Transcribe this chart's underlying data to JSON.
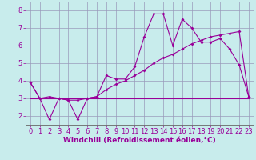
{
  "background_color": "#c8ecec",
  "plot_bg_color": "#c8ecec",
  "line_color": "#990099",
  "grid_color": "#9999bb",
  "spine_color": "#666666",
  "xlabel": "Windchill (Refroidissement éolien,°C)",
  "xlim": [
    -0.5,
    23.5
  ],
  "ylim": [
    1.5,
    8.5
  ],
  "yticks": [
    2,
    3,
    4,
    5,
    6,
    7,
    8
  ],
  "xticks": [
    0,
    1,
    2,
    3,
    4,
    5,
    6,
    7,
    8,
    9,
    10,
    11,
    12,
    13,
    14,
    15,
    16,
    17,
    18,
    19,
    20,
    21,
    22,
    23
  ],
  "series1_x": [
    0,
    1,
    2,
    3,
    4,
    5,
    6,
    7,
    8,
    9,
    10,
    11,
    12,
    13,
    14,
    15,
    16,
    17,
    18,
    19,
    20,
    21,
    22,
    23
  ],
  "series1_y": [
    3.9,
    3.0,
    1.8,
    3.0,
    2.9,
    1.8,
    3.0,
    3.1,
    4.3,
    4.1,
    4.1,
    4.8,
    6.5,
    7.8,
    7.8,
    6.0,
    7.5,
    7.0,
    6.2,
    6.2,
    6.4,
    5.8,
    4.9,
    3.1
  ],
  "series2_x": [
    0,
    1,
    2,
    3,
    4,
    5,
    6,
    7,
    8,
    9,
    10,
    11,
    12,
    13,
    14,
    15,
    16,
    17,
    18,
    19,
    20,
    21,
    22,
    23
  ],
  "series2_y": [
    3.9,
    3.0,
    3.1,
    3.0,
    2.9,
    2.9,
    3.0,
    3.1,
    3.5,
    3.8,
    4.0,
    4.3,
    4.6,
    5.0,
    5.3,
    5.5,
    5.8,
    6.1,
    6.3,
    6.5,
    6.6,
    6.7,
    6.8,
    3.1
  ],
  "series3_x": [
    0,
    23
  ],
  "series3_y": [
    3.0,
    3.0
  ],
  "xlabel_fontsize": 6.5,
  "tick_fontsize": 6,
  "marker_size": 2.0,
  "line_width": 0.8
}
